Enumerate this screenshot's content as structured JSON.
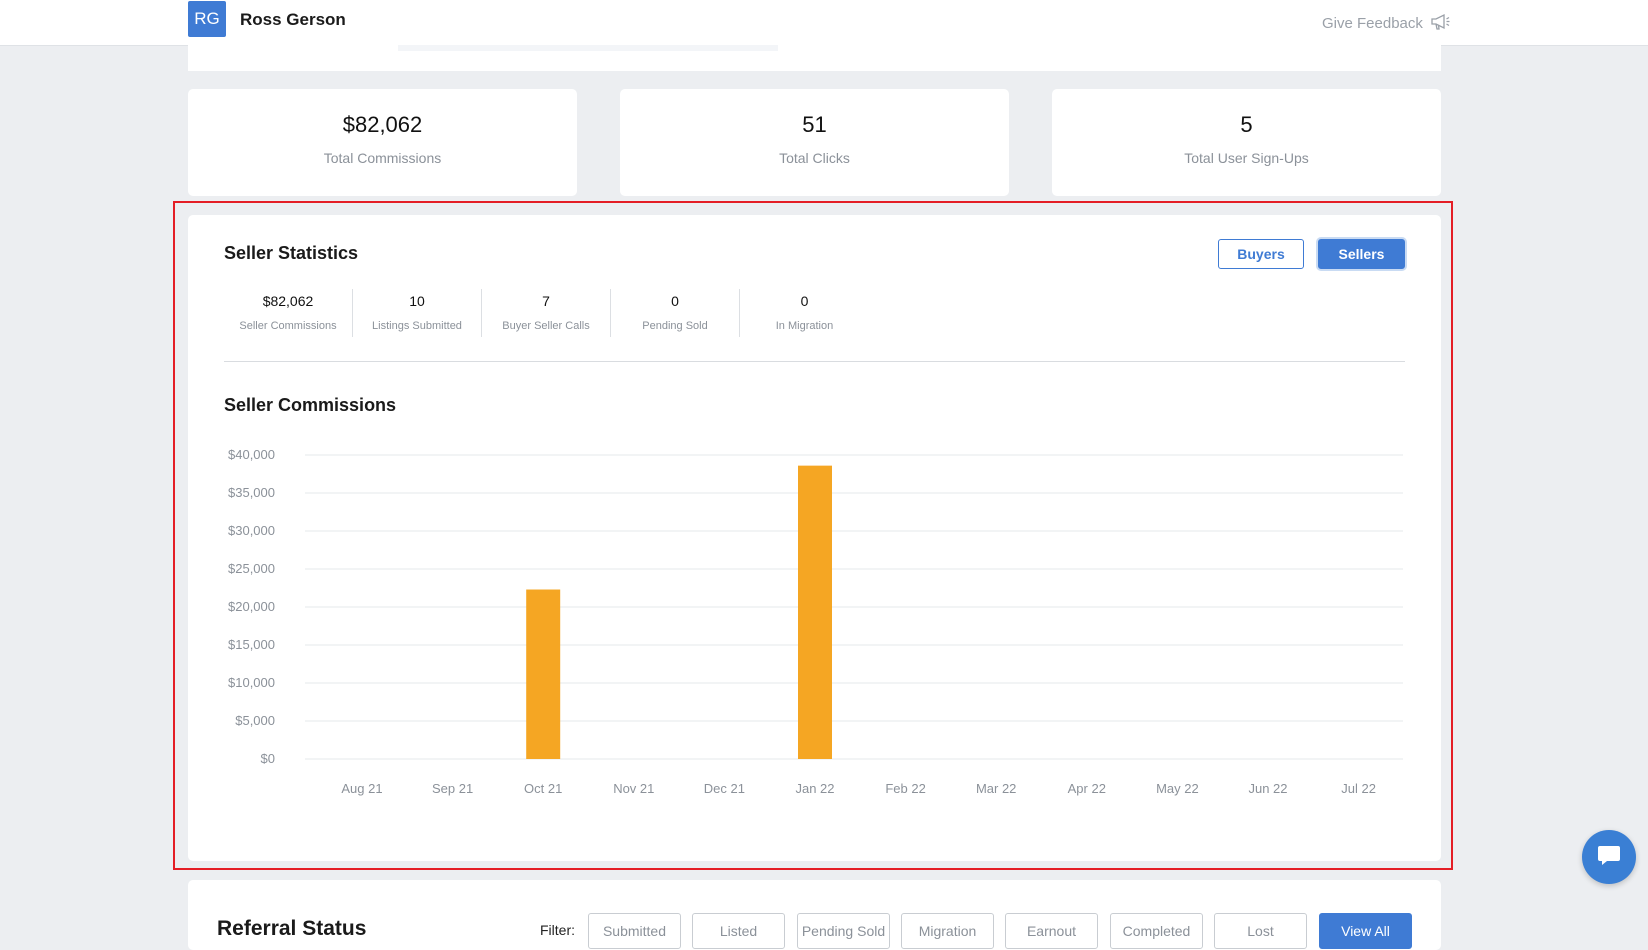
{
  "header": {
    "avatar_initials": "RG",
    "user_name": "Ross Gerson",
    "feedback_label": "Give Feedback"
  },
  "summary_cards": [
    {
      "value": "$82,062",
      "label": "Total Commissions"
    },
    {
      "value": "51",
      "label": "Total Clicks"
    },
    {
      "value": "5",
      "label": "Total User Sign-Ups"
    }
  ],
  "seller_stats": {
    "title": "Seller Statistics",
    "toggle_buyers": "Buyers",
    "toggle_sellers": "Sellers",
    "active_toggle": "Sellers",
    "metrics": [
      {
        "value": "$82,062",
        "label": "Seller Commissions"
      },
      {
        "value": "10",
        "label": "Listings Submitted"
      },
      {
        "value": "7",
        "label": "Buyer Seller Calls"
      },
      {
        "value": "0",
        "label": "Pending Sold"
      },
      {
        "value": "0",
        "label": "In Migration"
      }
    ],
    "chart_title": "Seller Commissions"
  },
  "chart_data": {
    "type": "bar",
    "title": "Seller Commissions",
    "categories": [
      "Aug 21",
      "Sep 21",
      "Oct 21",
      "Nov 21",
      "Dec 21",
      "Jan 22",
      "Feb 22",
      "Mar 22",
      "Apr 22",
      "May 22",
      "Jun 22",
      "Jul 22"
    ],
    "values": [
      0,
      0,
      22300,
      0,
      0,
      38600,
      0,
      0,
      0,
      0,
      0,
      0
    ],
    "ylim": [
      0,
      40000
    ],
    "yticks": [
      "$0",
      "$5,000",
      "$10,000",
      "$15,000",
      "$20,000",
      "$25,000",
      "$30,000",
      "$35,000",
      "$40,000"
    ],
    "ytick_values": [
      0,
      5000,
      10000,
      15000,
      20000,
      25000,
      30000,
      35000,
      40000
    ],
    "bar_color": "#f5a623",
    "grid": true,
    "xlabel": "",
    "ylabel": ""
  },
  "referral": {
    "title": "Referral Status",
    "filter_label": "Filter:",
    "filters": [
      "Submitted",
      "Listed",
      "Pending Sold",
      "Migration",
      "Earnout",
      "Completed",
      "Lost"
    ],
    "view_all": "View All"
  },
  "colors": {
    "accent": "#3f7bd4",
    "bar": "#f5a623",
    "highlight": "#e41e26"
  }
}
